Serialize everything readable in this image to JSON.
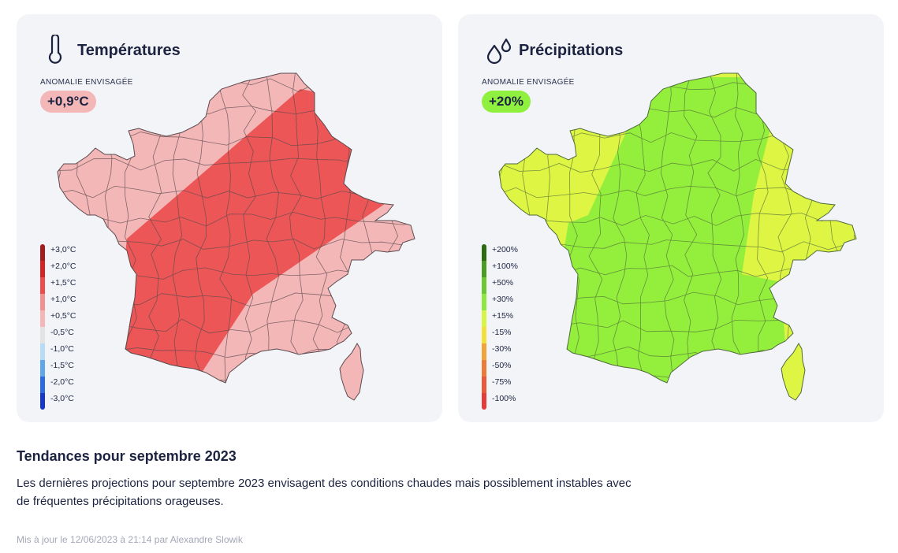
{
  "temperature": {
    "title": "Températures",
    "icon": "thermometer-icon",
    "anomaly_label": "ANOMALIE ENVISAGÉE",
    "anomaly_value": "+0,9°C",
    "badge_color": "#f4b7b8",
    "legend": [
      {
        "label": "+3,0°C",
        "color": "#a51c1c"
      },
      {
        "label": "+2,0°C",
        "color": "#d42323"
      },
      {
        "label": "+1,5°C",
        "color": "#ec4c4c"
      },
      {
        "label": "+1,0°C",
        "color": "#f39090"
      },
      {
        "label": "+0,5°C",
        "color": "#f4b7b8"
      },
      {
        "label": "-0,5°C",
        "color": "#e3e3e3"
      },
      {
        "label": "-1,0°C",
        "color": "#b9dbf4"
      },
      {
        "label": "-1,5°C",
        "color": "#62a6ea"
      },
      {
        "label": "-2,0°C",
        "color": "#2d6ce0"
      },
      {
        "label": "-3,0°C",
        "color": "#1638c8"
      }
    ],
    "zones": [
      {
        "level": "+0,5°C",
        "color": "#f4b7b8"
      },
      {
        "level": "+1,5°C",
        "color": "#ec5656"
      }
    ]
  },
  "precipitation": {
    "title": "Précipitations",
    "icon": "water-drops-icon",
    "anomaly_label": "ANOMALIE ENVISAGÉE",
    "anomaly_value": "+20%",
    "badge_color": "#8ff03f",
    "legend": [
      {
        "label": "+200%",
        "color": "#2d6a12"
      },
      {
        "label": "+100%",
        "color": "#4c9c24"
      },
      {
        "label": "+50%",
        "color": "#6cc832"
      },
      {
        "label": "+30%",
        "color": "#8ee841"
      },
      {
        "label": "+15%",
        "color": "#d8f547"
      },
      {
        "label": "-15%",
        "color": "#f3df3e"
      },
      {
        "label": "-30%",
        "color": "#f0a43a"
      },
      {
        "label": "-50%",
        "color": "#ec7b3a"
      },
      {
        "label": "-75%",
        "color": "#e95a3a"
      },
      {
        "label": "-100%",
        "color": "#e43b3b"
      }
    ],
    "zones": [
      {
        "level": "+15%",
        "color": "#dff544"
      },
      {
        "level": "+30%",
        "color": "#94ef3d"
      }
    ]
  },
  "footer": {
    "title": "Tendances pour septembre 2023",
    "text": "Les dernières projections pour septembre 2023 envisagent des conditions chaudes mais possiblement instables avec de fréquentes précipitations orageuses.",
    "updated": "Mis à jour le 12/06/2023 à 21:14 par Alexandre Slowik"
  }
}
